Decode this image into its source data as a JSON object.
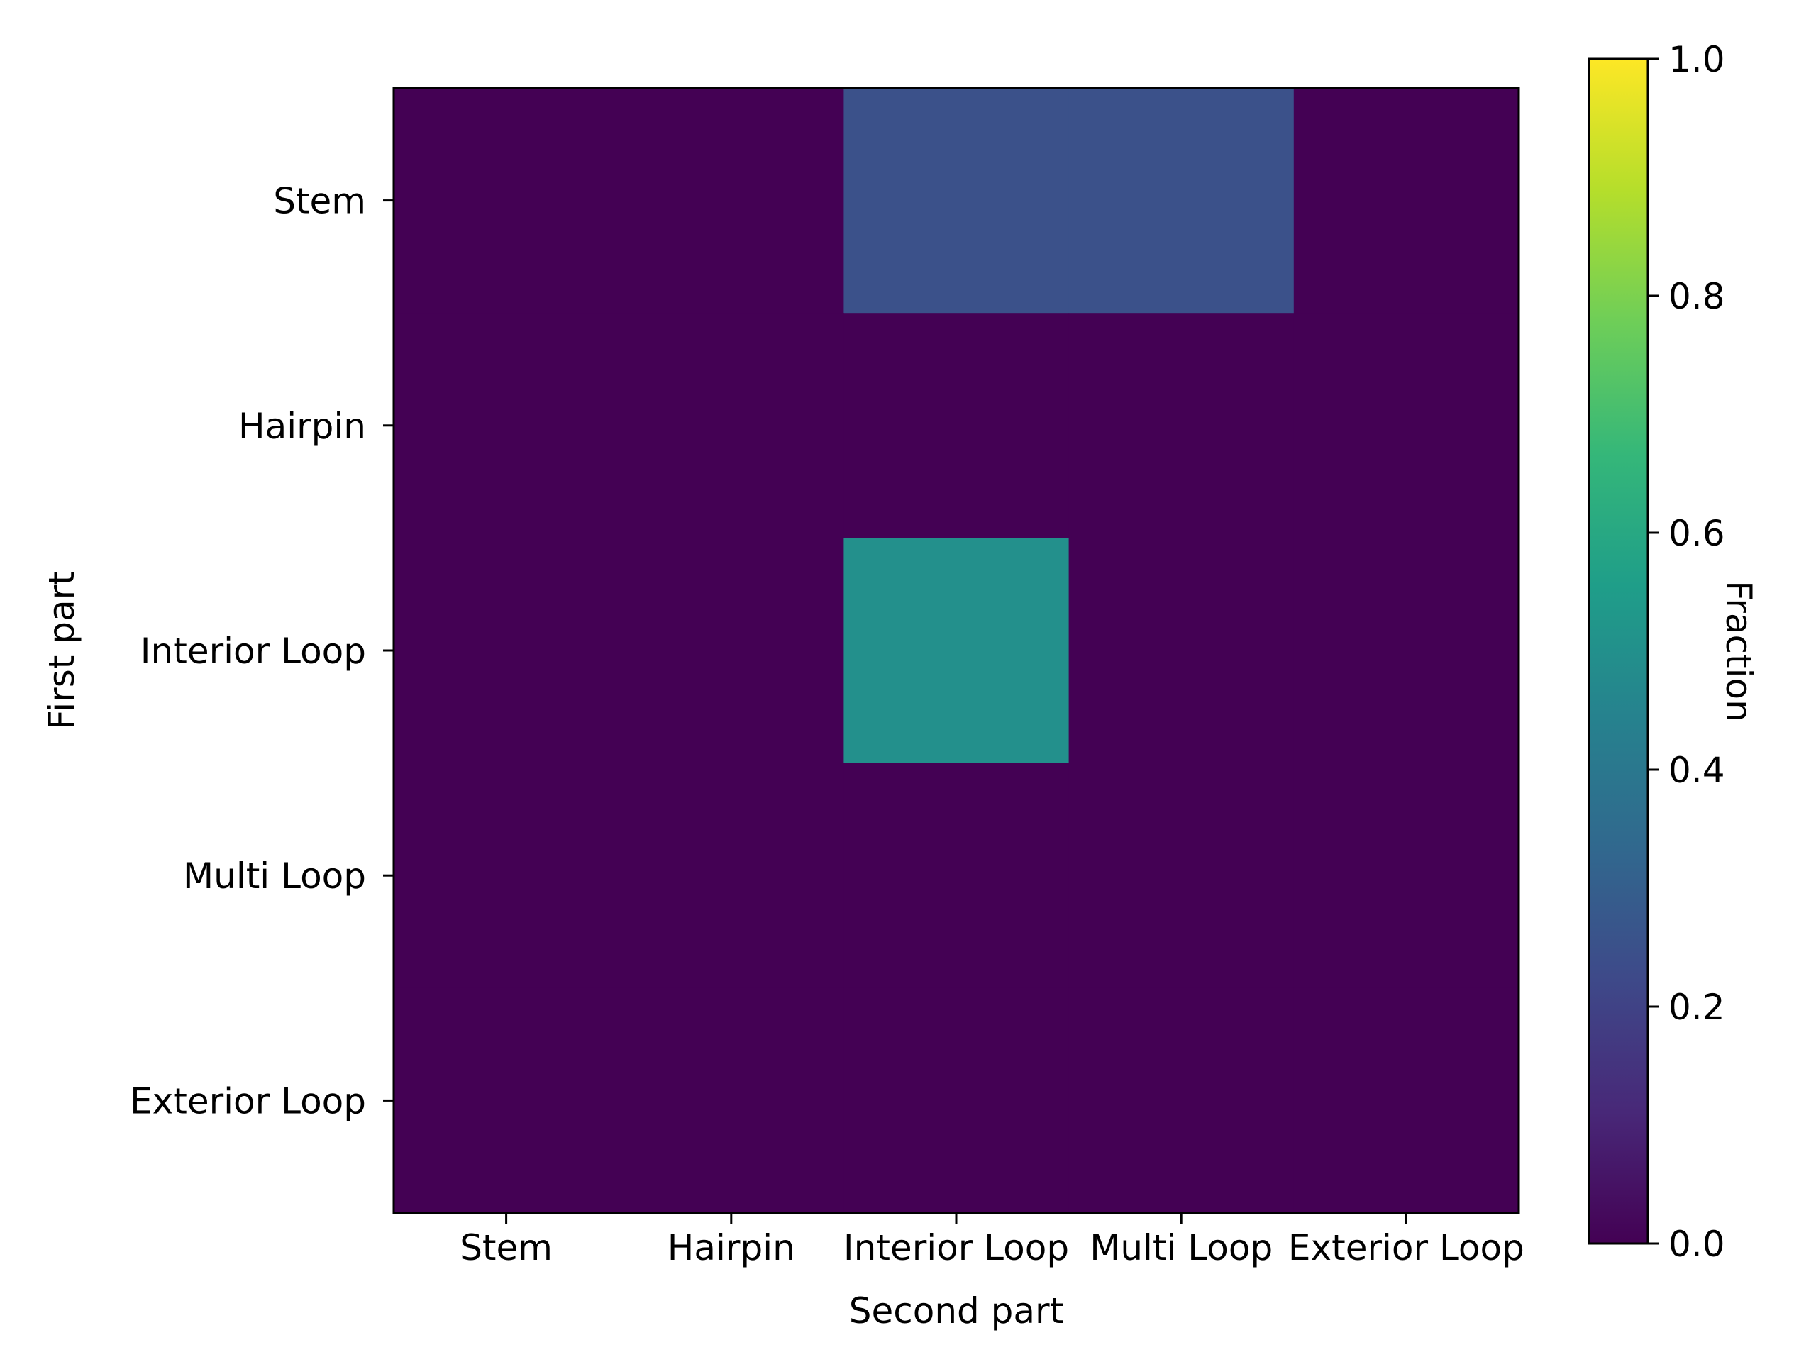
{
  "chart_data": {
    "type": "heatmap",
    "title": "",
    "xlabel": "Second part",
    "ylabel": "First part",
    "x_categories": [
      "Stem",
      "Hairpin",
      "Interior Loop",
      "Multi Loop",
      "Exterior Loop"
    ],
    "y_categories": [
      "Stem",
      "Hairpin",
      "Interior Loop",
      "Multi Loop",
      "Exterior Loop"
    ],
    "values": [
      [
        0.0,
        0.0,
        0.25,
        0.25,
        0.0
      ],
      [
        0.0,
        0.0,
        0.0,
        0.0,
        0.0
      ],
      [
        0.0,
        0.0,
        0.5,
        0.0,
        0.0
      ],
      [
        0.0,
        0.0,
        0.0,
        0.0,
        0.0
      ],
      [
        0.0,
        0.0,
        0.0,
        0.0,
        0.0
      ]
    ],
    "colorbar": {
      "label": "Fraction",
      "range": [
        0.0,
        1.0
      ],
      "ticks": [
        0.0,
        0.2,
        0.4,
        0.6,
        0.8,
        1.0
      ],
      "tick_labels": [
        "0.0",
        "0.2",
        "0.4",
        "0.6",
        "0.8",
        "1.0"
      ],
      "colormap": "viridis"
    },
    "grid": false
  }
}
